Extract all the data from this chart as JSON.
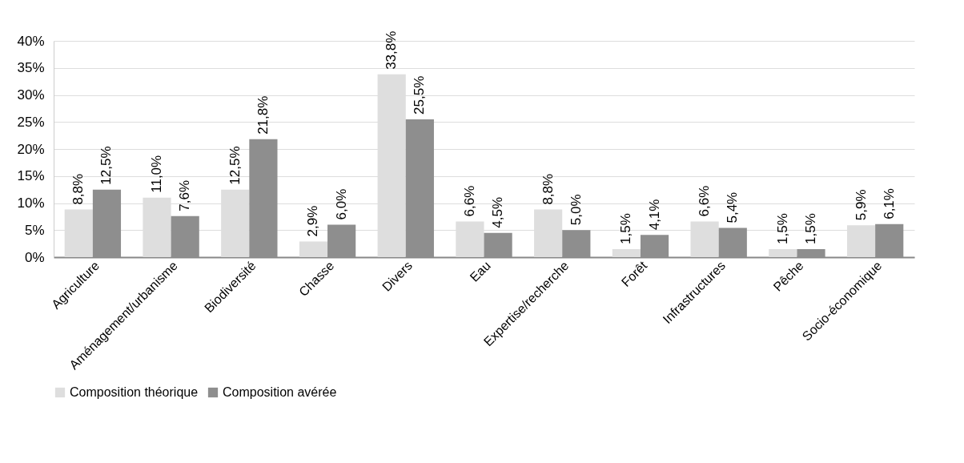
{
  "chart_data": {
    "type": "bar",
    "categories": [
      "Agriculture",
      "Aménagement/urbanisme",
      "Biodiversité",
      "Chasse",
      "Divers",
      "Eau",
      "Expertise/recherche",
      "Forêt",
      "Infrastructures",
      "Pêche",
      "Socio-économique"
    ],
    "series": [
      {
        "name": "Composition théorique",
        "color": "#dedede",
        "values": [
          8.8,
          11.0,
          12.5,
          2.9,
          33.8,
          6.6,
          8.8,
          1.5,
          6.6,
          1.5,
          5.9
        ],
        "value_labels": [
          "8,8%",
          "11,0%",
          "12,5%",
          "2,9%",
          "33,8%",
          "6,6%",
          "8,8%",
          "1,5%",
          "6,6%",
          "1,5%",
          "5,9%"
        ]
      },
      {
        "name": "Composition avérée",
        "color": "#8e8e8e",
        "values": [
          12.5,
          7.6,
          21.8,
          6.0,
          25.5,
          4.5,
          5.0,
          4.1,
          5.4,
          1.5,
          6.1
        ],
        "value_labels": [
          "12,5%",
          "7,6%",
          "21,8%",
          "6,0%",
          "25,5%",
          "4,5%",
          "5,0%",
          "4,1%",
          "5,4%",
          "1,5%",
          "6,1%"
        ]
      }
    ],
    "ylim": [
      0,
      40
    ],
    "yticks": [
      {
        "value": 0,
        "label": "0%"
      },
      {
        "value": 5,
        "label": "5%"
      },
      {
        "value": 10,
        "label": "10%"
      },
      {
        "value": 15,
        "label": "15%"
      },
      {
        "value": 20,
        "label": "20%"
      },
      {
        "value": 25,
        "label": "25%"
      },
      {
        "value": 30,
        "label": "30%"
      },
      {
        "value": 35,
        "label": "35%"
      },
      {
        "value": 40,
        "label": "40%"
      }
    ],
    "grid": "y",
    "legend": "bottom"
  }
}
